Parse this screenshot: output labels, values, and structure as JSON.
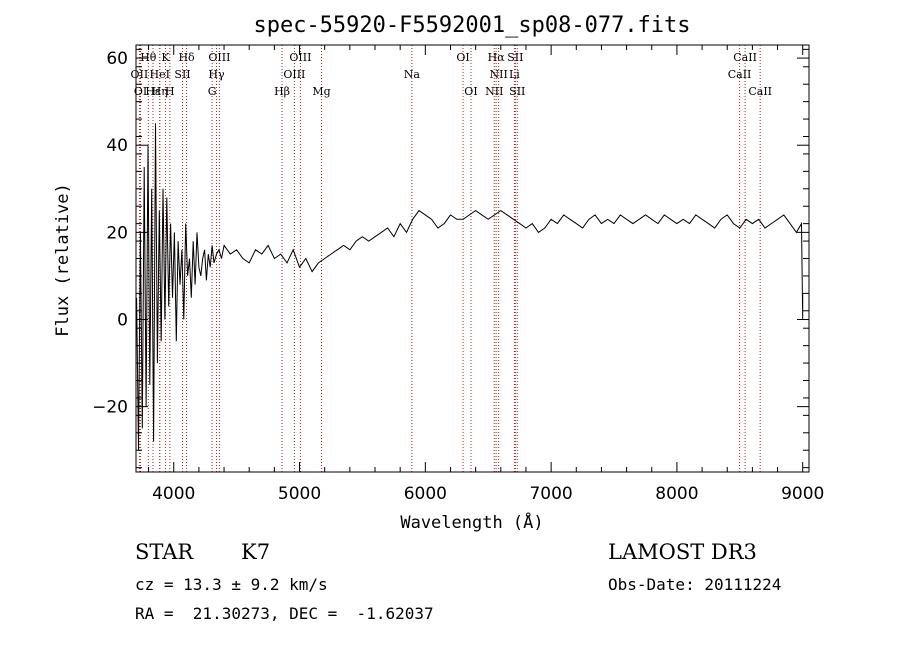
{
  "chart_data": {
    "type": "line",
    "title": "spec-55920-F5592001_sp08-077.fits",
    "xlabel": "Wavelength (Å)",
    "ylabel": "Flux (relative)",
    "xlim": [
      3700,
      9050
    ],
    "ylim": [
      -35,
      63
    ],
    "x_ticks": [
      4000,
      5000,
      6000,
      7000,
      8000,
      9000
    ],
    "y_ticks": [
      -20,
      0,
      20,
      40,
      60
    ],
    "grid": false,
    "series": [
      {
        "name": "flux",
        "x": [
          3705,
          3720,
          3735,
          3750,
          3765,
          3780,
          3795,
          3810,
          3825,
          3840,
          3855,
          3870,
          3885,
          3900,
          3915,
          3930,
          3945,
          3960,
          3975,
          3990,
          4005,
          4020,
          4035,
          4050,
          4065,
          4080,
          4095,
          4110,
          4125,
          4140,
          4155,
          4170,
          4185,
          4200,
          4215,
          4230,
          4245,
          4260,
          4275,
          4290,
          4305,
          4320,
          4340,
          4360,
          4380,
          4400,
          4450,
          4500,
          4550,
          4600,
          4650,
          4700,
          4750,
          4800,
          4850,
          4900,
          4950,
          5000,
          5050,
          5100,
          5150,
          5200,
          5250,
          5300,
          5350,
          5400,
          5450,
          5500,
          5550,
          5600,
          5650,
          5700,
          5750,
          5800,
          5850,
          5900,
          5950,
          6000,
          6050,
          6100,
          6150,
          6200,
          6250,
          6300,
          6350,
          6400,
          6450,
          6500,
          6550,
          6600,
          6650,
          6700,
          6750,
          6800,
          6850,
          6900,
          6950,
          7000,
          7050,
          7100,
          7150,
          7200,
          7250,
          7300,
          7350,
          7400,
          7450,
          7500,
          7550,
          7600,
          7650,
          7700,
          7750,
          7800,
          7850,
          7900,
          7950,
          8000,
          8050,
          8100,
          8150,
          8200,
          8250,
          8300,
          8350,
          8400,
          8450,
          8500,
          8550,
          8600,
          8650,
          8700,
          8750,
          8800,
          8850,
          8900,
          8950,
          8990,
          9000,
          9000
        ],
        "values": [
          5,
          -30,
          20,
          -25,
          35,
          -20,
          40,
          -15,
          30,
          -28,
          45,
          -10,
          25,
          -5,
          30,
          0,
          28,
          3,
          22,
          5,
          20,
          -5,
          18,
          8,
          16,
          0,
          22,
          10,
          14,
          5,
          18,
          8,
          20,
          12,
          10,
          14,
          16,
          9,
          15,
          12,
          17,
          13,
          15,
          16,
          14,
          17,
          15,
          16,
          14,
          13,
          16,
          15,
          17,
          14,
          15,
          13,
          16,
          12,
          14,
          11,
          13,
          14,
          15,
          16,
          17,
          16,
          18,
          19,
          18,
          19,
          20,
          21,
          19,
          22,
          20,
          23,
          25,
          24,
          23,
          21,
          22,
          24,
          23,
          23,
          24,
          25,
          24,
          23,
          24,
          25,
          24,
          23,
          22,
          21,
          22,
          20,
          21,
          23,
          22,
          24,
          23,
          22,
          21,
          23,
          24,
          22,
          23,
          22,
          24,
          23,
          22,
          23,
          24,
          23,
          22,
          24,
          23,
          22,
          23,
          22,
          24,
          23,
          22,
          21,
          23,
          24,
          22,
          21,
          23,
          22,
          23,
          21,
          22,
          23,
          24,
          22,
          20,
          22,
          0,
          6
        ]
      }
    ],
    "line_markers": [
      {
        "label": "Hθ",
        "wavelength": 3798,
        "row": 0
      },
      {
        "label": "K",
        "wavelength": 3934,
        "row": 0
      },
      {
        "label": "Hδ",
        "wavelength": 4102,
        "row": 0
      },
      {
        "label": "OIII",
        "wavelength": 4363,
        "row": 0
      },
      {
        "label": "OIII",
        "wavelength": 5007,
        "row": 0
      },
      {
        "label": "OI",
        "wavelength": 6300,
        "row": 0
      },
      {
        "label": "Hα",
        "wavelength": 6563,
        "row": 0
      },
      {
        "label": "SII",
        "wavelength": 6716,
        "row": 0
      },
      {
        "label": "CaII",
        "wavelength": 8542,
        "row": 0
      },
      {
        "label": "OII",
        "wavelength": 3727,
        "row": 1
      },
      {
        "label": "HeI",
        "wavelength": 3889,
        "row": 1
      },
      {
        "label": "SII",
        "wavelength": 4070,
        "row": 1
      },
      {
        "label": "Hγ",
        "wavelength": 4340,
        "row": 1
      },
      {
        "label": "OIII",
        "wavelength": 4959,
        "row": 1
      },
      {
        "label": "Na",
        "wavelength": 5893,
        "row": 1
      },
      {
        "label": "NII",
        "wavelength": 6583,
        "row": 1
      },
      {
        "label": "Li",
        "wavelength": 6708,
        "row": 1
      },
      {
        "label": "CaII",
        "wavelength": 8498,
        "row": 1
      },
      {
        "label": "OI",
        "wavelength": 3736,
        "row": 2
      },
      {
        "label": "Hε",
        "wavelength": 3835,
        "row": 2
      },
      {
        "label": "Hη",
        "wavelength": 3889,
        "row": 2
      },
      {
        "label": "H",
        "wavelength": 3969,
        "row": 2
      },
      {
        "label": "G",
        "wavelength": 4305,
        "row": 2
      },
      {
        "label": "Hβ",
        "wavelength": 4861,
        "row": 2
      },
      {
        "label": "Mg",
        "wavelength": 5175,
        "row": 2
      },
      {
        "label": "OI",
        "wavelength": 6363,
        "row": 2
      },
      {
        "label": "NII",
        "wavelength": 6548,
        "row": 2
      },
      {
        "label": "SII",
        "wavelength": 6731,
        "row": 2
      },
      {
        "label": "CaII",
        "wavelength": 8662,
        "row": 2
      }
    ],
    "colors": {
      "spectrum": "#000000",
      "marker": "#b22222",
      "text": "#000000"
    }
  },
  "info": {
    "class": "STAR",
    "subclass": "K7",
    "survey": "LAMOST DR3",
    "cz_line": "cz = 13.3 ± 9.2 km/s",
    "obs_date_line": "Obs-Date: 20111224",
    "radec_line": "RA =  21.30273, DEC =  -1.62037"
  }
}
